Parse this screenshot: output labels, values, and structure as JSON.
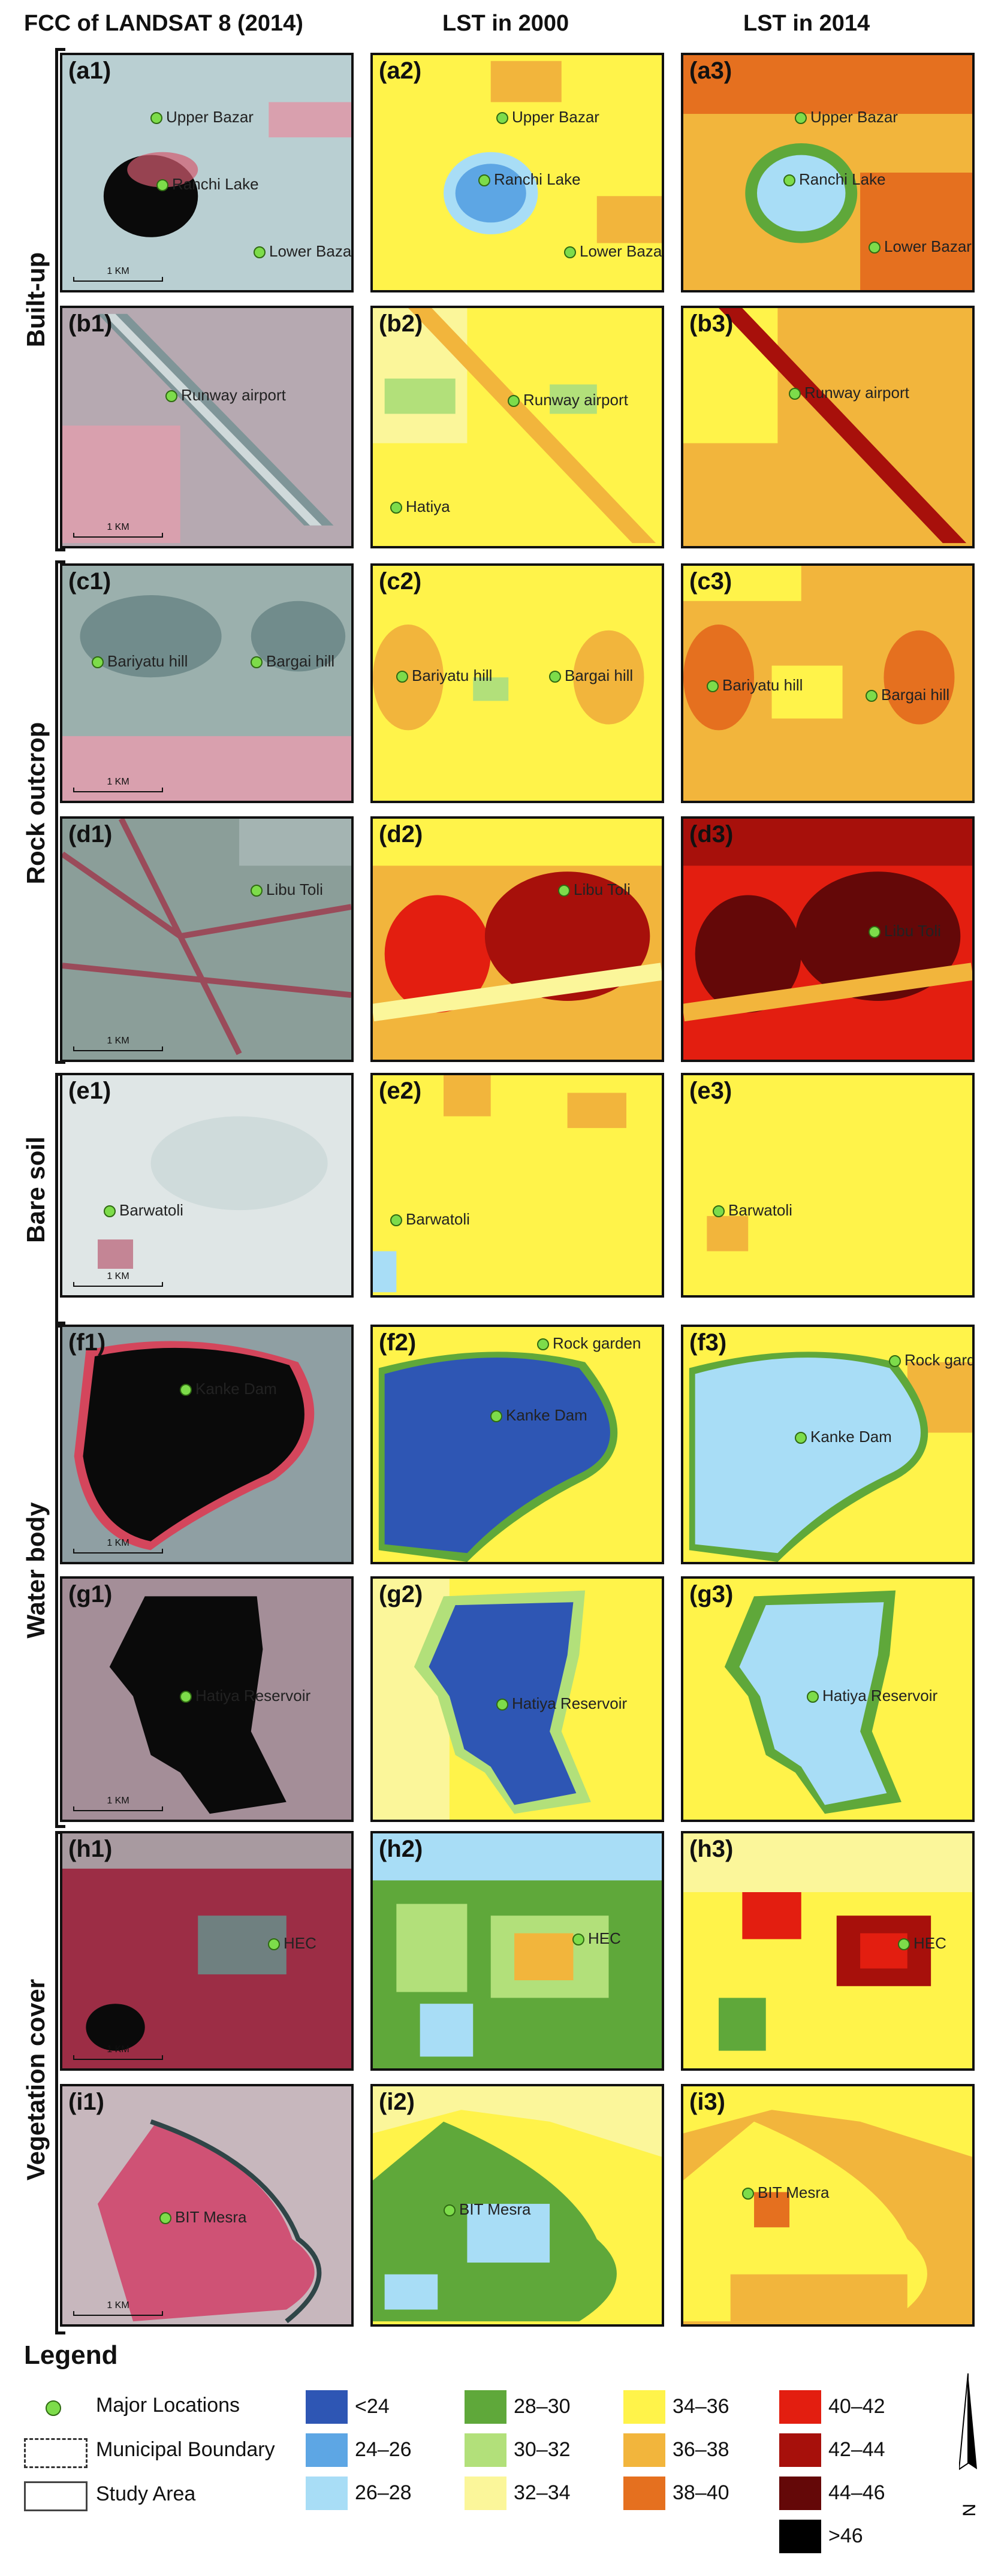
{
  "headers": [
    "FCC of LANDSAT 8 (2014)",
    "LST in 2000",
    "LST in 2014"
  ],
  "groups": [
    {
      "label": "Built-up"
    },
    {
      "label": "Rock outcrop"
    },
    {
      "label": "Bare soil"
    },
    {
      "label": "Water body"
    },
    {
      "label": "Vegetation cover"
    }
  ],
  "rows": [
    {
      "labels": [
        "(a1)",
        "(a2)",
        "(a3)"
      ],
      "locations": [
        [
          "Upper Bazar",
          "Ranchi Lake",
          "Lower Bazar"
        ],
        [
          "Upper Bazar",
          "Ranchi Lake",
          "Lower Bazar"
        ],
        [
          "Upper Bazar",
          "Ranchi Lake",
          "Lower Bazar"
        ]
      ],
      "scale": "1 KM"
    },
    {
      "labels": [
        "(b1)",
        "(b2)",
        "(b3)"
      ],
      "locations": [
        [
          "Runway airport"
        ],
        [
          "Runway airport",
          "Hatiya"
        ],
        [
          "Runway airport"
        ]
      ],
      "scale": "1 KM"
    },
    {
      "labels": [
        "(c1)",
        "(c2)",
        "(c3)"
      ],
      "locations": [
        [
          "Bariyatu hill",
          "Bargai hill"
        ],
        [
          "Bariyatu hill",
          "Bargai hill"
        ],
        [
          "Bariyatu hill",
          "Bargai hill"
        ]
      ],
      "scale": "1 KM"
    },
    {
      "labels": [
        "(d1)",
        "(d2)",
        "(d3)"
      ],
      "locations": [
        [
          "Libu Toli"
        ],
        [
          "Libu Toli"
        ],
        [
          "Libu Toli"
        ]
      ],
      "scale": "1 KM"
    },
    {
      "labels": [
        "(e1)",
        "(e2)",
        "(e3)"
      ],
      "locations": [
        [
          "Barwatoli"
        ],
        [
          "Barwatoli"
        ],
        [
          "Barwatoli"
        ]
      ],
      "scale": "1 KM"
    },
    {
      "labels": [
        "(f1)",
        "(f2)",
        "(f3)"
      ],
      "locations": [
        [
          "Kanke Dam"
        ],
        [
          "Rock garden",
          "Kanke Dam"
        ],
        [
          "Rock garden",
          "Kanke Dam"
        ]
      ],
      "scale": "1 KM"
    },
    {
      "labels": [
        "(g1)",
        "(g2)",
        "(g3)"
      ],
      "locations": [
        [
          "Hatiya Reservoir"
        ],
        [
          "Hatiya Reservoir"
        ],
        [
          "Hatiya Reservoir"
        ]
      ],
      "scale": "1 KM"
    },
    {
      "labels": [
        "(h1)",
        "(h2)",
        "(h3)"
      ],
      "locations": [
        [
          "HEC"
        ],
        [
          "HEC"
        ],
        [
          "HEC"
        ]
      ],
      "scale": "1 KM"
    },
    {
      "labels": [
        "(i1)",
        "(i2)",
        "(i3)"
      ],
      "locations": [
        [
          "BIT Mesra"
        ],
        [
          "BIT Mesra"
        ],
        [
          "BIT Mesra"
        ]
      ],
      "scale": "1 KM"
    }
  ],
  "legend": {
    "title": "Legend",
    "symbols": [
      "Major Locations",
      "Municipal Boundary",
      "Study Area"
    ],
    "classes": [
      {
        "label": "<24",
        "color": "#2e56b4"
      },
      {
        "label": "24–26",
        "color": "#5da6e4"
      },
      {
        "label": "26–28",
        "color": "#a8ddf6"
      },
      {
        "label": "28–30",
        "color": "#5fa83a"
      },
      {
        "label": "30–32",
        "color": "#b2e07a"
      },
      {
        "label": "32–34",
        "color": "#fbf69a"
      },
      {
        "label": "34–36",
        "color": "#fff34a"
      },
      {
        "label": "36–38",
        "color": "#f2b53c"
      },
      {
        "label": "38–40",
        "color": "#e5701f"
      },
      {
        "label": "40–42",
        "color": "#e31e10"
      },
      {
        "label": "42–44",
        "color": "#a7100b"
      },
      {
        "label": "44–46",
        "color": "#640808"
      },
      {
        "label": ">46",
        "color": "#000000"
      }
    ],
    "north": "N"
  },
  "colors": {
    "fcc_base": "#a9c6c9",
    "fcc_veg": "#b3283f",
    "fcc_water": "#0a0a0a",
    "location_dot": "#7ddc4a"
  }
}
